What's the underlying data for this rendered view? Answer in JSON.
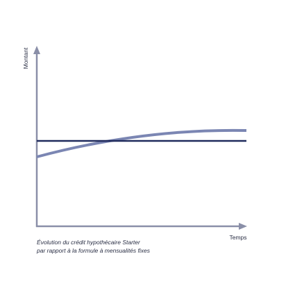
{
  "axes": {
    "y_label": "Montant",
    "x_label": "Temps"
  },
  "caption": {
    "line1": "Évolution du crédit hypothécaire Starter",
    "line2": "par rapport à la formule à mensualités fixes"
  }
}
